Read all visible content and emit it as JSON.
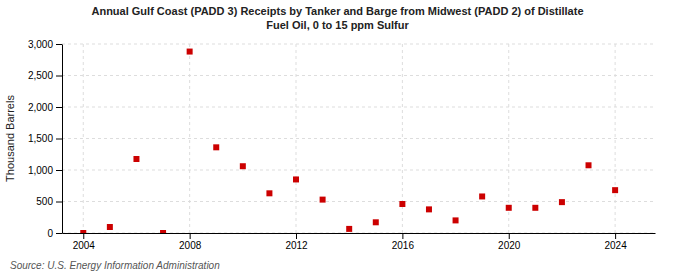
{
  "chart_data": {
    "type": "scatter",
    "title": "Annual Gulf Coast (PADD 3) Receipts by Tanker and Barge from Midwest (PADD 2) of Distillate\nFuel Oil, 0 to 15 ppm Sulfur",
    "y_label": "Thousand Barrels",
    "source": "Source: U.S. Energy Information Administration",
    "x": [
      2004,
      2005,
      2006,
      2007,
      2008,
      2009,
      2010,
      2011,
      2012,
      2013,
      2014,
      2015,
      2016,
      2017,
      2018,
      2019,
      2020,
      2021,
      2022,
      2023,
      2024
    ],
    "values": [
      0,
      95,
      1175,
      0,
      2880,
      1360,
      1060,
      630,
      850,
      530,
      65,
      170,
      460,
      375,
      200,
      580,
      400,
      400,
      490,
      1075,
      680
    ],
    "color": "#cc0000",
    "marker": "square",
    "xlim": [
      2003.2,
      2025.5
    ],
    "xticks": [
      2004,
      2008,
      2012,
      2016,
      2020,
      2024
    ],
    "ylim": [
      0,
      3000
    ],
    "yticks": [
      0,
      500,
      {
        "value": 1000,
        "label": "1,000"
      },
      {
        "value": 1500,
        "label": "1,500"
      },
      {
        "value": 2000,
        "label": "2,000"
      },
      {
        "value": 2500,
        "label": "2,500"
      },
      {
        "value": 3000,
        "label": "3,000"
      }
    ],
    "grid": true
  }
}
